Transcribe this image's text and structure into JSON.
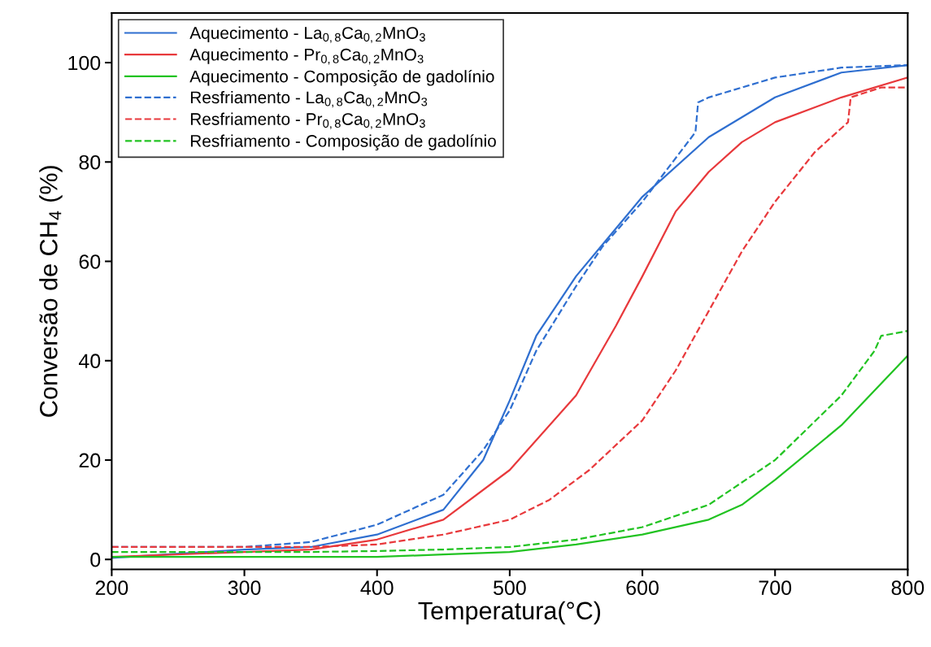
{
  "chart_data": {
    "type": "line",
    "xlabel": "Temperatura(°C)",
    "ylabel": "Conversão de CH$_{4}$ (%)",
    "xlim": [
      200,
      800
    ],
    "ylim": [
      -2,
      110
    ],
    "xticks": [
      200,
      300,
      400,
      500,
      600,
      700,
      800
    ],
    "yticks": [
      0,
      20,
      40,
      60,
      80,
      100
    ],
    "grid": false,
    "legend": "top left",
    "marker": "none",
    "series": [
      {
        "name": "Aquecimento - La$_{0,8}$Ca$_{0,2}$MnO$_{3}$",
        "color": "#2f6fd0",
        "line_style": "solid",
        "x": [
          200,
          300,
          350,
          400,
          450,
          480,
          500,
          520,
          550,
          575,
          600,
          650,
          700,
          750,
          800
        ],
        "values": [
          0.3,
          2,
          2.5,
          5,
          10,
          20,
          32,
          45,
          57,
          65,
          73,
          85,
          93,
          98,
          99.5
        ]
      },
      {
        "name": "Aquecimento - Pr$_{0,8}$Ca$_{0,2}$MnO$_{3}$",
        "color": "#e8393c",
        "line_style": "solid",
        "x": [
          200,
          300,
          350,
          400,
          450,
          500,
          550,
          580,
          600,
          625,
          650,
          675,
          700,
          750,
          800
        ],
        "values": [
          0.5,
          1.5,
          2,
          4,
          8,
          18,
          33,
          47,
          57,
          70,
          78,
          84,
          88,
          93,
          97
        ]
      },
      {
        "name": "Aquecimento - Composição de gadolínio",
        "color": "#22c322",
        "line_style": "solid",
        "x": [
          200,
          300,
          400,
          450,
          500,
          550,
          600,
          650,
          675,
          700,
          750,
          800
        ],
        "values": [
          0.5,
          0.5,
          0.5,
          1,
          1.5,
          3,
          5,
          8,
          11,
          16,
          27,
          41
        ]
      },
      {
        "name": "Resfriamento - La$_{0,8}$Ca$_{0,2}$MnO$_{3}$",
        "color": "#2f6fd0",
        "line_style": "dashed",
        "x": [
          200,
          300,
          350,
          400,
          450,
          460,
          480,
          500,
          520,
          550,
          570,
          600,
          640,
          642,
          650,
          700,
          750,
          800
        ],
        "values": [
          2.5,
          2.5,
          3.5,
          7,
          13,
          16,
          22,
          30,
          42,
          55,
          63,
          72,
          86,
          92,
          93,
          97,
          99,
          99.5
        ]
      },
      {
        "name": "Resfriamento - Pr$_{0,8}$Ca$_{0,2}$MnO$_{3}$",
        "color": "#e8393c",
        "line_style": "dashed",
        "x": [
          200,
          300,
          350,
          400,
          450,
          500,
          530,
          560,
          600,
          625,
          650,
          675,
          700,
          730,
          755,
          757,
          780,
          800
        ],
        "values": [
          2.5,
          2.5,
          2.5,
          3,
          5,
          8,
          12,
          18,
          28,
          38,
          50,
          62,
          72,
          82,
          88,
          93,
          95,
          95
        ]
      },
      {
        "name": "Resfriamento - Composição de gadolínio",
        "color": "#22c322",
        "line_style": "dashed",
        "x": [
          200,
          300,
          350,
          400,
          450,
          500,
          550,
          600,
          650,
          700,
          750,
          775,
          780,
          800
        ],
        "values": [
          1.5,
          1.5,
          1.5,
          1.7,
          2,
          2.5,
          4,
          6.5,
          11,
          20,
          33,
          42,
          45,
          46
        ]
      }
    ]
  }
}
